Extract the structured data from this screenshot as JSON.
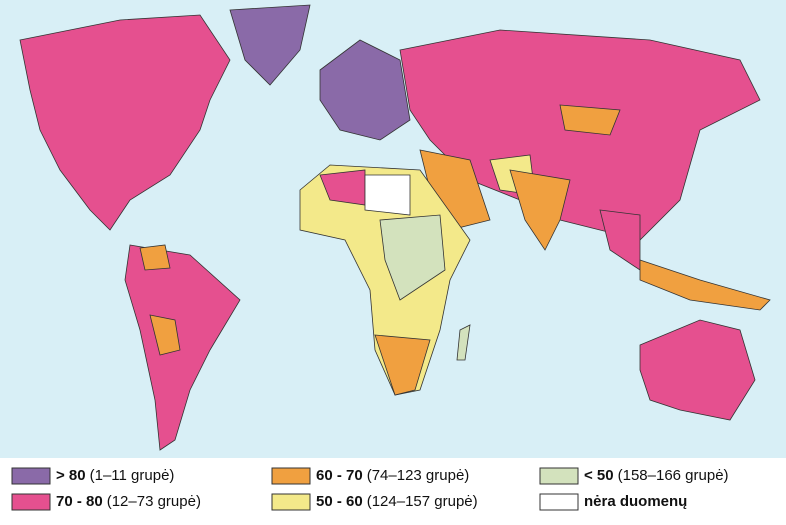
{
  "legend": {
    "items": [
      {
        "label": "> 80",
        "range": "(1–11 grupė)",
        "color": "#8a6aa8"
      },
      {
        "label": "70 - 80",
        "range": "(12–73 grupė)",
        "color": "#e5508f"
      },
      {
        "label": "60 - 70",
        "range": "(74–123 grupė)",
        "color": "#f0a040"
      },
      {
        "label": "50 - 60",
        "range": "(124–157 grupė)",
        "color": "#f3e98a"
      },
      {
        "label": "< 50",
        "range": "(158–166 grupė)",
        "color": "#d3e2bd"
      },
      {
        "label": "nėra duomenų",
        "color": "#ffffff"
      }
    ]
  }
}
